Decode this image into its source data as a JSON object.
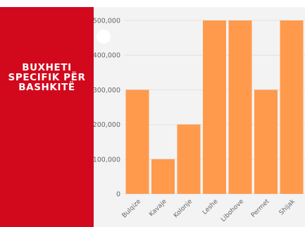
{
  "panel": {
    "title": "BUXHETI\nSPECIFIK PËR\nBASHKITË",
    "background_color": "#d2081d",
    "text_color": "#ffffff"
  },
  "chart_data": {
    "type": "bar",
    "categories": [
      "Bulqize",
      "Kavaje",
      "Kolonje",
      "Leshe",
      "Libohove",
      "Permet",
      "Shijak"
    ],
    "values": [
      300000,
      100000,
      200000,
      500000,
      500000,
      300000,
      500000
    ],
    "yticks": [
      "0",
      "100,000",
      "200,000",
      "300,000",
      "400,000",
      "500,000"
    ],
    "ylim": [
      0,
      500000
    ],
    "grid": true,
    "bar_color": "#ff9a4d",
    "title": "",
    "xlabel": "",
    "ylabel": ""
  }
}
